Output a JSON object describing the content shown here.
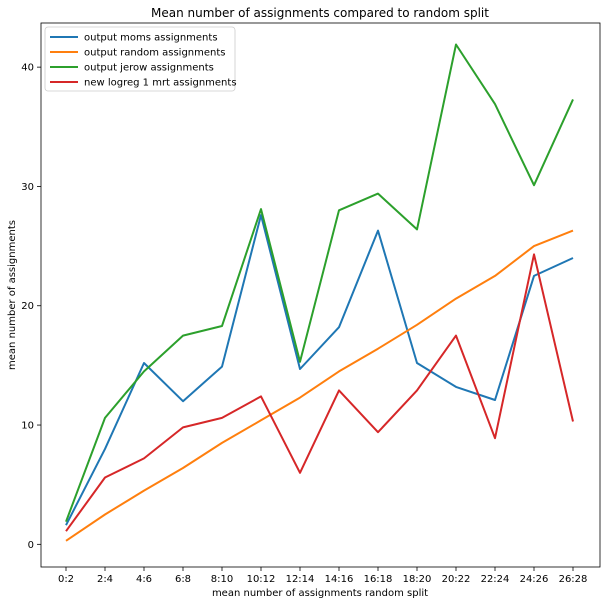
{
  "chart_data": {
    "type": "line",
    "title": "Mean number of assignments compared to random split",
    "xlabel": "mean number of assignments random split",
    "ylabel": "mean number of assignments",
    "categories": [
      "0:2",
      "2:4",
      "4:6",
      "6:8",
      "8:10",
      "10:12",
      "12:14",
      "14:16",
      "16:18",
      "18:20",
      "20:22",
      "22:24",
      "24:26",
      "26:28"
    ],
    "ylim": [
      -1.9,
      43.7
    ],
    "yticks": [
      0,
      10,
      20,
      30,
      40
    ],
    "grid": false,
    "legend_position": "upper-left",
    "series": [
      {
        "name": "output moms assignments",
        "color": "#1f77b4",
        "values": [
          1.6,
          8.0,
          15.2,
          12.0,
          14.9,
          27.6,
          14.7,
          18.2,
          26.3,
          15.2,
          13.2,
          12.1,
          22.5,
          24.0
        ]
      },
      {
        "name": "output random assignments",
        "color": "#ff7f0e",
        "values": [
          0.3,
          2.5,
          4.5,
          6.4,
          8.5,
          10.4,
          12.3,
          14.5,
          16.4,
          18.4,
          20.6,
          22.5,
          25.0,
          26.3
        ]
      },
      {
        "name": "output jerow assignments",
        "color": "#2ca02c",
        "values": [
          1.9,
          10.6,
          14.5,
          17.5,
          18.3,
          28.1,
          15.3,
          28.0,
          29.4,
          26.4,
          41.9,
          36.9,
          30.1,
          37.3
        ]
      },
      {
        "name": "new logreg 1 mrt assignments",
        "color": "#d62728",
        "values": [
          1.1,
          5.6,
          7.2,
          9.8,
          10.6,
          12.4,
          6.0,
          12.9,
          9.4,
          12.9,
          17.5,
          8.9,
          24.3,
          10.3
        ]
      }
    ]
  }
}
